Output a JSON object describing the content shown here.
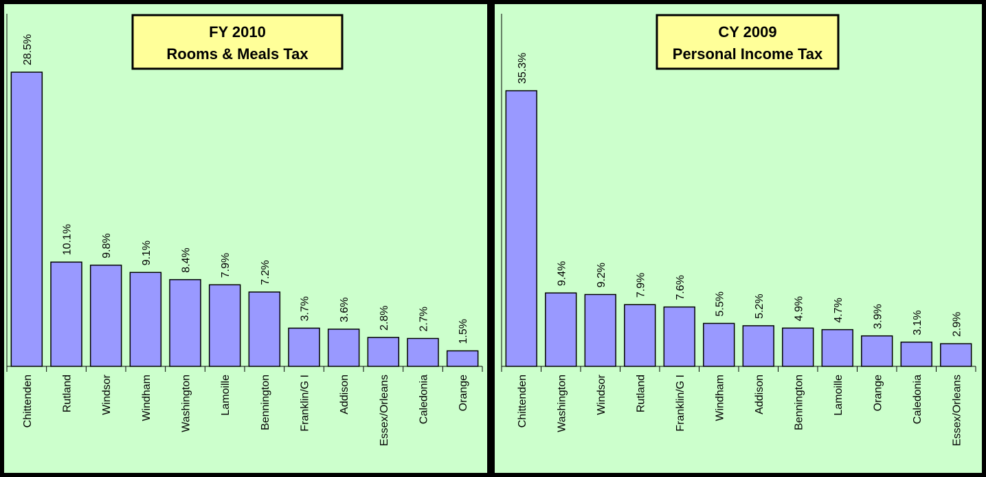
{
  "chart_data": [
    {
      "type": "bar",
      "title": "FY 2010",
      "subtitle": "Rooms & Meals Tax",
      "color": "#9999ff",
      "categories": [
        "Chittenden",
        "Rutland",
        "Windsor",
        "Windham",
        "Washington",
        "Lamoille",
        "Bennington",
        "Franklin/G I",
        "Addison",
        "Essex/Orleans",
        "Caledonia",
        "Orange"
      ],
      "values": [
        28.5,
        10.1,
        9.8,
        9.1,
        8.4,
        7.9,
        7.2,
        3.7,
        3.6,
        2.8,
        2.7,
        1.5
      ],
      "value_labels": [
        "28.5%",
        "10.1%",
        "9.8%",
        "9.1%",
        "8.4%",
        "7.9%",
        "7.2%",
        "3.7%",
        "3.6%",
        "2.8%",
        "2.7%",
        "1.5%"
      ]
    },
    {
      "type": "bar",
      "title": "CY 2009",
      "subtitle": "Personal Income Tax",
      "color": "#9999ff",
      "categories": [
        "Chittenden",
        "Washington",
        "Windsor",
        "Rutland",
        "Franklin/G I",
        "Windham",
        "Addison",
        "Bennington",
        "Lamoille",
        "Orange",
        "Caledonia",
        "Essex/Orleans"
      ],
      "values": [
        35.3,
        9.4,
        9.2,
        7.9,
        7.6,
        5.5,
        5.2,
        4.9,
        4.7,
        3.9,
        3.1,
        2.9
      ],
      "value_labels": [
        "35.3%",
        "9.4%",
        "9.2%",
        "7.9%",
        "7.6%",
        "5.5%",
        "5.2%",
        "4.9%",
        "4.7%",
        "3.9%",
        "3.1%",
        "2.9%"
      ]
    }
  ]
}
